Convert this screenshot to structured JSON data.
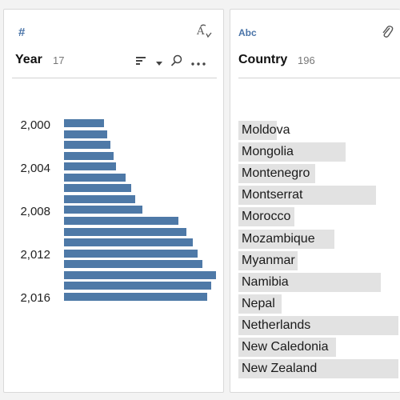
{
  "year_card": {
    "type_icon": "number-type-icon",
    "title": "Year",
    "count": "17",
    "tick_labels": [
      "2,000",
      "2,004",
      "2,008",
      "2,012",
      "2,016"
    ],
    "icons": [
      "spelling-icon",
      "sort-icon",
      "dropdown-caret-icon",
      "search-icon",
      "more-icon"
    ]
  },
  "country_card": {
    "type_label": "Abc",
    "title": "Country",
    "count": "196",
    "icons": [
      "paperclip-icon"
    ]
  },
  "chart_data": {
    "type": "bar",
    "orientation": "horizontal",
    "categories": [
      2000,
      2001,
      2002,
      2003,
      2004,
      2005,
      2006,
      2007,
      2008,
      2009,
      2010,
      2011,
      2012,
      2013,
      2014,
      2015,
      2016
    ],
    "values": [
      49,
      53,
      57,
      61,
      64,
      75,
      82,
      87,
      96,
      140,
      150,
      158,
      163,
      169,
      186,
      180,
      175
    ],
    "value_scale": "relative frequency (no axis printed)",
    "color": "#4e79a7",
    "grid": false
  },
  "countries": [
    {
      "name": "Moldova",
      "fill": 0.24
    },
    {
      "name": "Mongolia",
      "fill": 0.67
    },
    {
      "name": "Montenegro",
      "fill": 0.48
    },
    {
      "name": "Montserrat",
      "fill": 0.86
    },
    {
      "name": "Morocco",
      "fill": 0.35
    },
    {
      "name": "Mozambique",
      "fill": 0.6
    },
    {
      "name": "Myanmar",
      "fill": 0.37
    },
    {
      "name": "Namibia",
      "fill": 0.89
    },
    {
      "name": "Nepal",
      "fill": 0.27
    },
    {
      "name": "Netherlands",
      "fill": 1.0
    },
    {
      "name": "New Caledonia",
      "fill": 0.61
    },
    {
      "name": "New Zealand",
      "fill": 1.0
    }
  ],
  "colors": {
    "accent": "#4e79a7",
    "type_icon": "#4a74a8",
    "country_bar": "#e2e2e2"
  }
}
